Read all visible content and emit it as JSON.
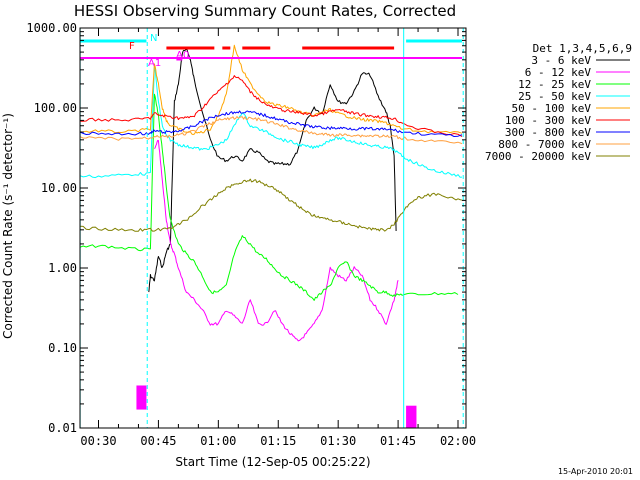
{
  "chart_data": {
    "type": "line",
    "title": "HESSI Observing Summary Count Rates, Corrected",
    "xlabel": "Start Time (12-Sep-05 00:25:22)",
    "ylabel": "Corrected Count Rate (s⁻¹ detector⁻¹)",
    "xlim": [
      25.37,
      122.0
    ],
    "ylim": [
      0.01,
      1000
    ],
    "yscale": "log",
    "x_unit": "minutes after 00:00 UT on 12-Sep-05",
    "x_ticks": [
      {
        "value": 30,
        "label": "00:30"
      },
      {
        "value": 45,
        "label": "00:45"
      },
      {
        "value": 60,
        "label": "01:00"
      },
      {
        "value": 75,
        "label": "01:15"
      },
      {
        "value": 90,
        "label": "01:30"
      },
      {
        "value": 105,
        "label": "01:45"
      },
      {
        "value": 120,
        "label": "02:00"
      }
    ],
    "y_ticks": [
      {
        "value": 0.01,
        "label": "0.01"
      },
      {
        "value": 0.1,
        "label": "0.10"
      },
      {
        "value": 1,
        "label": "1.00"
      },
      {
        "value": 10,
        "label": "10.00"
      },
      {
        "value": 100,
        "label": "100.00"
      },
      {
        "value": 1000,
        "label": "1000.00"
      }
    ],
    "legend_title": "Det 1,3,4,5,6,9",
    "legend_position": "right",
    "grid": false,
    "series": [
      {
        "name": "3 - 6 keV",
        "color": "#000000",
        "x": [
          25.4,
          42,
          42.6,
          43,
          44,
          45,
          46,
          47,
          48,
          49,
          50,
          51,
          52,
          53,
          54,
          56,
          58,
          60,
          62,
          64,
          66,
          68,
          70,
          72,
          74,
          76,
          78,
          80,
          82,
          84,
          86,
          88,
          90,
          92,
          94,
          96,
          98,
          100,
          102,
          103,
          104,
          104.5
        ],
        "y": [
          null,
          null,
          0.5,
          0.8,
          0.7,
          1.4,
          1.0,
          1.6,
          2.0,
          120,
          200,
          480,
          560,
          400,
          220,
          90,
          40,
          24,
          22,
          25,
          22,
          30,
          28,
          22,
          20,
          20,
          20,
          30,
          70,
          100,
          85,
          200,
          120,
          115,
          160,
          270,
          260,
          140,
          90,
          60,
          25,
          3
        ]
      },
      {
        "name": "6 - 12 keV",
        "color": "#ff00ff",
        "x": [
          25.4,
          43,
          44,
          45,
          46,
          47,
          48,
          49,
          50,
          52,
          54,
          56,
          58,
          60,
          62,
          64,
          66,
          68,
          70,
          72,
          74,
          76,
          78,
          80,
          82,
          84,
          86,
          88,
          90,
          92,
          94,
          96,
          98,
          100,
          102,
          104,
          105
        ],
        "y": [
          null,
          null,
          30,
          40,
          12,
          4,
          2,
          1.5,
          1.0,
          0.5,
          0.4,
          0.3,
          0.2,
          0.2,
          0.3,
          0.25,
          0.2,
          0.4,
          0.2,
          0.2,
          0.3,
          0.2,
          0.15,
          0.12,
          0.15,
          0.2,
          0.3,
          1.0,
          0.8,
          0.7,
          1.0,
          0.8,
          0.4,
          0.3,
          0.2,
          0.4,
          0.7
        ]
      },
      {
        "name": "12 - 25 keV",
        "color": "#00ff00",
        "x": [
          25.4,
          30,
          35,
          40,
          43,
          44,
          45,
          46,
          47,
          48,
          50,
          52,
          54,
          56,
          58,
          60,
          62,
          64,
          66,
          68,
          70,
          72,
          74,
          76,
          78,
          80,
          82,
          84,
          86,
          88,
          90,
          92,
          94,
          96,
          98,
          100,
          102,
          104,
          106,
          110,
          115,
          120
        ],
        "y": [
          1.8,
          1.9,
          1.8,
          1.7,
          1.7,
          150,
          80,
          30,
          10,
          4,
          2,
          1.5,
          1.2,
          0.8,
          0.5,
          0.5,
          0.6,
          1.5,
          2.5,
          2.0,
          1.5,
          1.3,
          1.0,
          0.8,
          0.7,
          0.6,
          0.5,
          0.4,
          0.5,
          0.6,
          1.0,
          1.2,
          0.8,
          0.7,
          0.6,
          0.5,
          0.5,
          0.45,
          0.47,
          0.47,
          0.48,
          0.48
        ]
      },
      {
        "name": "25 - 50 keV",
        "color": "#00ffff",
        "x": [
          25.4,
          30,
          35,
          40,
          43,
          44,
          45,
          46,
          47,
          48,
          50,
          52,
          54,
          56,
          58,
          60,
          62,
          64,
          66,
          68,
          70,
          72,
          74,
          76,
          78,
          80,
          82,
          84,
          86,
          88,
          90,
          92,
          94,
          96,
          98,
          100,
          102,
          104,
          106,
          108,
          110,
          112,
          115,
          118,
          121
        ],
        "y": [
          14,
          14,
          14.5,
          15,
          15,
          350,
          120,
          60,
          45,
          40,
          35,
          33,
          32,
          30,
          32,
          35,
          40,
          60,
          90,
          60,
          55,
          50,
          45,
          40,
          38,
          35,
          33,
          32,
          35,
          40,
          42,
          40,
          38,
          36,
          34,
          33,
          32,
          30,
          25,
          22,
          20,
          18,
          16,
          15,
          14
        ]
      },
      {
        "name": "50 - 100 keV",
        "color": "#ffa500",
        "x": [
          25.4,
          30,
          35,
          40,
          43,
          44,
          45,
          46,
          47,
          48,
          50,
          52,
          54,
          56,
          58,
          60,
          62,
          64,
          66,
          68,
          70,
          72,
          74,
          76,
          78,
          80,
          82,
          84,
          86,
          88,
          90,
          92,
          94,
          96,
          98,
          100,
          102,
          104,
          106,
          110,
          115,
          121
        ],
        "y": [
          50,
          52,
          50,
          52,
          55,
          350,
          200,
          100,
          70,
          60,
          55,
          50,
          48,
          50,
          55,
          80,
          150,
          600,
          300,
          200,
          150,
          120,
          110,
          105,
          100,
          90,
          85,
          80,
          90,
          95,
          85,
          80,
          75,
          72,
          70,
          68,
          65,
          60,
          55,
          52,
          50,
          48
        ]
      },
      {
        "name": "100 - 300 keV",
        "color": "#ff0000",
        "x": [
          25.4,
          30,
          35,
          40,
          43,
          44,
          46,
          48,
          50,
          52,
          54,
          56,
          58,
          60,
          62,
          64,
          66,
          68,
          70,
          72,
          74,
          76,
          78,
          80,
          82,
          84,
          86,
          88,
          90,
          92,
          94,
          96,
          98,
          100,
          102,
          104,
          106,
          110,
          115,
          121
        ],
        "y": [
          70,
          72,
          70,
          72,
          75,
          85,
          80,
          78,
          75,
          75,
          80,
          100,
          130,
          160,
          200,
          250,
          220,
          160,
          130,
          110,
          100,
          95,
          90,
          88,
          85,
          80,
          85,
          90,
          95,
          90,
          85,
          82,
          80,
          78,
          76,
          74,
          65,
          55,
          50,
          45
        ]
      },
      {
        "name": "300 - 800 keV",
        "color": "#0000ff",
        "x": [
          25.4,
          30,
          35,
          40,
          43,
          44,
          46,
          48,
          50,
          52,
          54,
          56,
          58,
          60,
          62,
          64,
          66,
          68,
          70,
          72,
          74,
          76,
          78,
          80,
          82,
          84,
          86,
          88,
          90,
          92,
          94,
          96,
          98,
          100,
          102,
          104,
          106,
          110,
          115,
          121
        ],
        "y": [
          48,
          48,
          47,
          48,
          48,
          52,
          50,
          50,
          52,
          55,
          60,
          68,
          75,
          82,
          85,
          88,
          90,
          88,
          85,
          80,
          75,
          70,
          66,
          63,
          60,
          58,
          57,
          56,
          56,
          56,
          55,
          55,
          55,
          54,
          54,
          53,
          50,
          48,
          46,
          45
        ]
      },
      {
        "name": "800 - 7000 keV",
        "color": "#ffa040",
        "x": [
          25.4,
          30,
          35,
          40,
          43,
          44,
          46,
          48,
          50,
          52,
          54,
          56,
          58,
          60,
          62,
          64,
          66,
          68,
          70,
          72,
          74,
          76,
          78,
          80,
          82,
          84,
          86,
          88,
          90,
          92,
          94,
          96,
          98,
          100,
          102,
          104,
          106,
          110,
          115,
          121
        ],
        "y": [
          42,
          42,
          41,
          42,
          42,
          45,
          44,
          44,
          46,
          48,
          52,
          58,
          64,
          70,
          73,
          75,
          76,
          74,
          72,
          68,
          64,
          60,
          56,
          53,
          50,
          48,
          47,
          46,
          46,
          46,
          46,
          45,
          45,
          45,
          44,
          44,
          42,
          40,
          38,
          36
        ]
      },
      {
        "name": "7000 - 20000 keV",
        "color": "#808000",
        "x": [
          25.4,
          30,
          35,
          40,
          43,
          46,
          48,
          50,
          52,
          54,
          56,
          58,
          60,
          62,
          64,
          66,
          68,
          70,
          72,
          74,
          76,
          78,
          80,
          82,
          84,
          86,
          88,
          90,
          92,
          94,
          96,
          98,
          100,
          102,
          104,
          106,
          108,
          110,
          112,
          115,
          118,
          121
        ],
        "y": [
          3.2,
          3.1,
          3.0,
          3.0,
          3.0,
          3.0,
          3.2,
          3.5,
          4.0,
          4.8,
          6.0,
          7.0,
          8.5,
          10,
          11,
          12,
          12.5,
          12,
          11,
          10,
          8.5,
          7.0,
          6.0,
          5.0,
          4.5,
          4.2,
          4.0,
          3.8,
          3.6,
          3.4,
          3.2,
          3.1,
          3.0,
          3.0,
          3.5,
          5.0,
          6.5,
          7.5,
          8.0,
          8.5,
          7.5,
          6.8
        ]
      }
    ],
    "state_bars": [
      {
        "label": "N",
        "color": "#00ffff",
        "intervals": [
          [
            25.4,
            42
          ],
          [
            107,
            121
          ]
        ]
      },
      {
        "label": "F",
        "color": "#ff0000",
        "intervals": [
          [
            47,
            59
          ],
          [
            61,
            63
          ],
          [
            66,
            73
          ],
          [
            81,
            104
          ]
        ]
      },
      {
        "label": "A0",
        "color": "#ff00ff",
        "intervals": [
          [
            49.5,
            51
          ]
        ]
      },
      {
        "label": "A1",
        "color": "#ff00ff",
        "intervals": [
          [
            25.4,
            121
          ]
        ]
      }
    ],
    "vlines": [
      {
        "x": 25.4,
        "color": "#00ffff",
        "dashed": false
      },
      {
        "x": 42.2,
        "color": "#00ffff",
        "dashed": true
      },
      {
        "x": 106.4,
        "color": "#00ffff",
        "dashed": false
      },
      {
        "x": 121.3,
        "color": "#00ffff",
        "dashed": true
      }
    ],
    "attenuator_blocks": [
      {
        "color": "#ff00ff",
        "x": [
          39.5,
          42
        ],
        "y": [
          0.017,
          0.034
        ]
      },
      {
        "color": "#ff00ff",
        "x": [
          107,
          109.6
        ],
        "y": [
          0.01,
          0.019
        ]
      }
    ]
  },
  "footer_stamp": "15-Apr-2010 20:01"
}
